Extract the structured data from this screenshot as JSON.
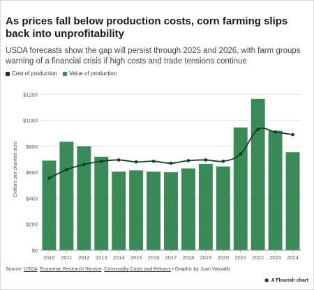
{
  "header": {
    "title": "As prices fall below production costs, corn farming slips back into unprofitability",
    "subtitle": "USDA forecasts show the gap will persist through 2025 and 2026, with farm groups warning of a financial crisis if high costs and trade tensions continue"
  },
  "colors": {
    "bar": "#3a8a57",
    "line": "#0f3d24",
    "grid": "#e3e3e3"
  },
  "chart_data": {
    "type": "bar",
    "categories": [
      "2010",
      "2011",
      "2012",
      "2013",
      "2014",
      "2015",
      "2016",
      "2017",
      "2018",
      "2019",
      "2020",
      "2021",
      "2022",
      "2023",
      "2024"
    ],
    "series": [
      {
        "name": "Cost of production",
        "type": "line",
        "values": [
          555,
          620,
          660,
          685,
          695,
          680,
          685,
          670,
          690,
          695,
          685,
          740,
          930,
          910,
          890
        ]
      },
      {
        "name": "Value of production",
        "type": "bar",
        "values": [
          690,
          835,
          800,
          720,
          605,
          615,
          605,
          600,
          630,
          665,
          645,
          945,
          1165,
          920,
          755
        ]
      }
    ],
    "ylabel": "Dollars per planted acre",
    "yticks": [
      "$0",
      "$200",
      "$400",
      "$600",
      "$800",
      "$1000",
      "$1200"
    ],
    "ylim": [
      0,
      1250
    ],
    "grid": true,
    "legend": "top-left"
  },
  "footer": {
    "prefix": "Source: ",
    "src1": "USDA",
    "sep1": ", ",
    "src2": "Economic Research Service",
    "sep2": ", ",
    "src3": "Commodity Costs and Returns",
    "suffix": " • Graphic by Juan Vassallo"
  },
  "badge": {
    "icon": "flourish-icon",
    "label": "A Flourish chart"
  }
}
